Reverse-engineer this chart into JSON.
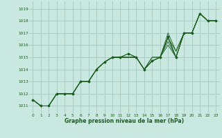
{
  "xlabel": "Graphe pression niveau de la mer (hPa)",
  "ylabel": "",
  "bg_color": "#c8e8e0",
  "grid_color": "#a8ccc8",
  "line_color": "#1a5c1a",
  "xlim": [
    -0.5,
    23.5
  ],
  "ylim": [
    1010.4,
    1019.6
  ],
  "yticks": [
    1011,
    1012,
    1013,
    1014,
    1015,
    1016,
    1017,
    1018,
    1019
  ],
  "xticks": [
    0,
    1,
    2,
    3,
    4,
    5,
    6,
    7,
    8,
    9,
    10,
    11,
    12,
    13,
    14,
    15,
    16,
    17,
    18,
    19,
    20,
    21,
    22,
    23
  ],
  "series": [
    [
      1011.5,
      1011.0,
      1011.0,
      1012.0,
      1012.0,
      1012.0,
      1013.0,
      1013.0,
      1014.0,
      1014.6,
      1015.0,
      1015.0,
      1015.3,
      1015.0,
      1014.0,
      1015.0,
      1015.0,
      1017.0,
      1015.5,
      1017.0,
      1017.0,
      1018.6,
      1018.0,
      1018.0
    ],
    [
      1011.5,
      1011.0,
      1011.0,
      1012.0,
      1012.0,
      1012.0,
      1013.0,
      1013.0,
      1014.0,
      1014.6,
      1015.0,
      1015.0,
      1015.0,
      1015.0,
      1014.0,
      1015.0,
      1015.0,
      1016.6,
      1015.5,
      1017.0,
      1017.0,
      1018.6,
      1018.0,
      1018.0
    ],
    [
      1011.5,
      1011.0,
      1011.0,
      1012.0,
      1012.0,
      1012.0,
      1013.0,
      1013.0,
      1014.0,
      1014.6,
      1015.0,
      1015.0,
      1015.0,
      1015.0,
      1014.0,
      1014.7,
      1015.0,
      1016.6,
      1015.0,
      1017.0,
      1017.0,
      1018.6,
      1018.0,
      1018.0
    ],
    [
      1011.5,
      1011.0,
      1011.0,
      1012.0,
      1012.0,
      1012.0,
      1013.0,
      1013.0,
      1014.0,
      1014.6,
      1015.0,
      1015.0,
      1015.0,
      1015.0,
      1014.0,
      1014.7,
      1015.0,
      1016.3,
      1015.0,
      1017.0,
      1017.0,
      1018.6,
      1018.0,
      1018.0
    ],
    [
      1011.5,
      1011.0,
      1011.0,
      1012.0,
      1012.0,
      1012.0,
      1013.0,
      1013.0,
      1014.0,
      1014.6,
      1015.0,
      1015.0,
      1015.0,
      1015.0,
      1014.0,
      1014.7,
      1015.0,
      1016.0,
      1015.0,
      1017.0,
      1017.0,
      1018.6,
      1018.0,
      1018.0
    ]
  ],
  "marker_series": {
    "x": [
      0,
      1,
      2,
      3,
      4,
      5,
      6,
      7,
      8,
      9,
      10,
      11,
      12,
      13,
      14,
      15,
      16,
      17,
      18,
      19,
      20,
      21,
      22,
      23
    ],
    "y": [
      1011.5,
      1011.0,
      1011.0,
      1012.0,
      1012.0,
      1012.0,
      1013.0,
      1013.0,
      1014.0,
      1014.6,
      1015.0,
      1015.0,
      1015.3,
      1015.0,
      1014.0,
      1014.7,
      1015.0,
      1016.7,
      1015.0,
      1017.0,
      1017.0,
      1018.6,
      1018.0,
      1018.0
    ]
  }
}
